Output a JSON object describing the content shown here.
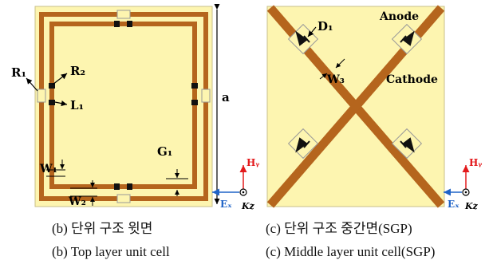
{
  "left_panel": {
    "labels": {
      "R1": "R₁",
      "R2": "R₂",
      "L1": "L₁",
      "G1": "G₁",
      "W1": "W₁",
      "W2": "W₂",
      "a": "a"
    },
    "axes": {
      "x": "Eₓ",
      "y": "Hᵧ",
      "z": "Kz"
    }
  },
  "right_panel": {
    "labels": {
      "D1": "D₁",
      "W3": "W₃",
      "anode": "Anode",
      "cathode": "Cathode"
    },
    "axes": {
      "x": "Eₓ",
      "y": "Hᵧ",
      "z": "Kz"
    }
  },
  "captions": {
    "left_ko": "(b) 단위 구조 윗면",
    "left_en": "(b) Top layer unit cell",
    "right_ko": "(c) 단위 구조 중간면(SGP)",
    "right_en": "(c) Middle layer unit cell(SGP)"
  },
  "colors": {
    "substrate": "#fdf5b0",
    "metal": "#b5651d",
    "diode": "#111111",
    "axis_y": "#e31a1c",
    "axis_x": "#1f63c7"
  }
}
